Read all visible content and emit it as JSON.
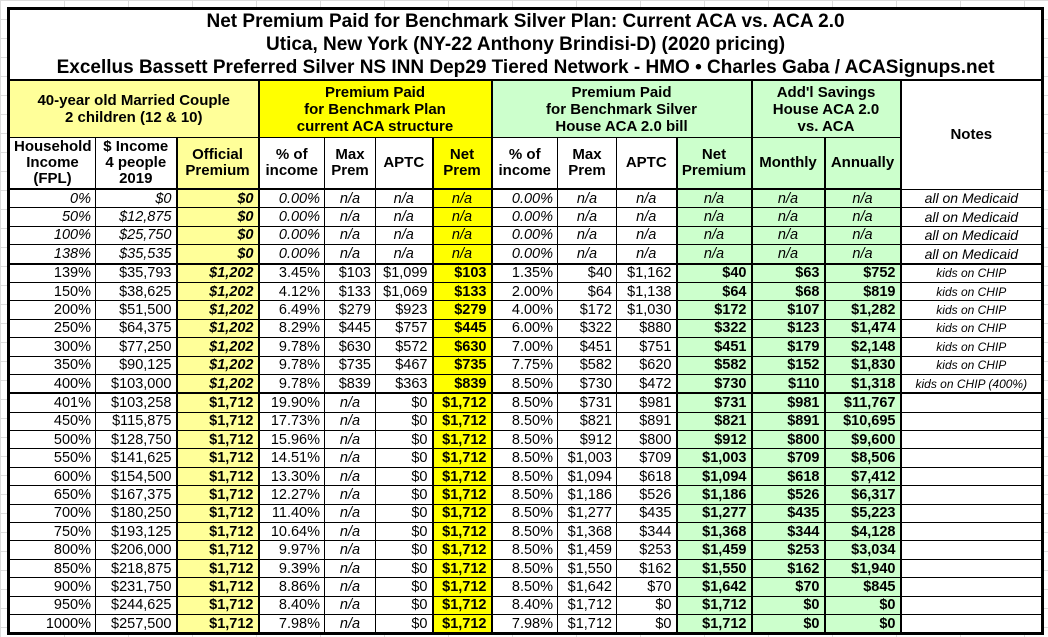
{
  "title": {
    "line1": "Net Premium Paid for Benchmark Silver Plan: Current ACA vs. ACA 2.0",
    "line2": "Utica, New York (NY-22 Anthony Brindisi-D) (2020 pricing)",
    "line3": "Excellus Bassett Preferred Silver NS INN Dep29 Tiered Network - HMO • Charles Gaba / ACASignups.net"
  },
  "group_headers": {
    "household": "40-year old Married Couple\n2 children (12 & 10)",
    "current_aca": "Premium Paid\nfor Benchmark Plan\ncurrent ACA structure",
    "house_aca2": "Premium Paid\nfor Benchmark Silver\nHouse ACA 2.0 bill",
    "savings": "Add'l Savings\nHouse ACA 2.0\nvs. ACA",
    "notes": "Notes"
  },
  "colors": {
    "pale_yellow": "#FFFF99",
    "bright_yellow": "#FFFF00",
    "pale_green": "#CCFFCC",
    "border": "#000000"
  },
  "chart_data": {
    "type": "table",
    "columns": [
      "Household\nIncome\n(FPL)",
      "$ Income\n4 people\n2019",
      "Official\nPremium",
      "% of\nincome",
      "Max\nPrem",
      "APTC",
      "Net\nPrem",
      "% of\nincome",
      "Max\nPrem",
      "APTC",
      "Net\nPremium",
      "Monthly",
      "Annually",
      "Notes"
    ],
    "rows": [
      {
        "style": "medicaid",
        "cells": [
          "0%",
          "$0",
          "$0",
          "0.00%",
          "n/a",
          "n/a",
          "n/a",
          "0.00%",
          "n/a",
          "n/a",
          "n/a",
          "n/a",
          "n/a",
          "all on Medicaid"
        ]
      },
      {
        "style": "medicaid",
        "cells": [
          "50%",
          "$12,875",
          "$0",
          "0.00%",
          "n/a",
          "n/a",
          "n/a",
          "0.00%",
          "n/a",
          "n/a",
          "n/a",
          "n/a",
          "n/a",
          "all on Medicaid"
        ]
      },
      {
        "style": "medicaid",
        "cells": [
          "100%",
          "$25,750",
          "$0",
          "0.00%",
          "n/a",
          "n/a",
          "n/a",
          "0.00%",
          "n/a",
          "n/a",
          "n/a",
          "n/a",
          "n/a",
          "all on Medicaid"
        ]
      },
      {
        "style": "medicaid",
        "cells": [
          "138%",
          "$35,535",
          "$0",
          "0.00%",
          "n/a",
          "n/a",
          "n/a",
          "0.00%",
          "n/a",
          "n/a",
          "n/a",
          "n/a",
          "n/a",
          "all on Medicaid"
        ]
      },
      {
        "style": "chip",
        "cells": [
          "139%",
          "$35,793",
          "$1,202",
          "3.45%",
          "$103",
          "$1,099",
          "$103",
          "1.35%",
          "$40",
          "$1,162",
          "$40",
          "$63",
          "$752",
          "kids on CHIP"
        ]
      },
      {
        "style": "chip",
        "cells": [
          "150%",
          "$38,625",
          "$1,202",
          "4.12%",
          "$133",
          "$1,069",
          "$133",
          "2.00%",
          "$64",
          "$1,138",
          "$64",
          "$68",
          "$819",
          "kids on CHIP"
        ]
      },
      {
        "style": "chip",
        "cells": [
          "200%",
          "$51,500",
          "$1,202",
          "6.49%",
          "$279",
          "$923",
          "$279",
          "4.00%",
          "$172",
          "$1,030",
          "$172",
          "$107",
          "$1,282",
          "kids on CHIP"
        ]
      },
      {
        "style": "chip",
        "cells": [
          "250%",
          "$64,375",
          "$1,202",
          "8.29%",
          "$445",
          "$757",
          "$445",
          "6.00%",
          "$322",
          "$880",
          "$322",
          "$123",
          "$1,474",
          "kids on CHIP"
        ]
      },
      {
        "style": "chip",
        "cells": [
          "300%",
          "$77,250",
          "$1,202",
          "9.78%",
          "$630",
          "$572",
          "$630",
          "7.00%",
          "$451",
          "$751",
          "$451",
          "$179",
          "$2,148",
          "kids on CHIP"
        ]
      },
      {
        "style": "chip",
        "cells": [
          "350%",
          "$90,125",
          "$1,202",
          "9.78%",
          "$735",
          "$467",
          "$735",
          "7.75%",
          "$582",
          "$620",
          "$582",
          "$152",
          "$1,830",
          "kids on CHIP"
        ]
      },
      {
        "style": "chip",
        "cells": [
          "400%",
          "$103,000",
          "$1,202",
          "9.78%",
          "$839",
          "$363",
          "$839",
          "8.50%",
          "$730",
          "$472",
          "$730",
          "$110",
          "$1,318",
          "kids on CHIP (400%)"
        ]
      },
      {
        "style": "plain",
        "cells": [
          "401%",
          "$103,258",
          "$1,712",
          "19.90%",
          "n/a",
          "$0",
          "$1,712",
          "8.50%",
          "$731",
          "$981",
          "$731",
          "$981",
          "$11,767",
          ""
        ]
      },
      {
        "style": "plain",
        "cells": [
          "450%",
          "$115,875",
          "$1,712",
          "17.73%",
          "n/a",
          "$0",
          "$1,712",
          "8.50%",
          "$821",
          "$891",
          "$821",
          "$891",
          "$10,695",
          ""
        ]
      },
      {
        "style": "plain",
        "cells": [
          "500%",
          "$128,750",
          "$1,712",
          "15.96%",
          "n/a",
          "$0",
          "$1,712",
          "8.50%",
          "$912",
          "$800",
          "$912",
          "$800",
          "$9,600",
          ""
        ]
      },
      {
        "style": "plain",
        "cells": [
          "550%",
          "$141,625",
          "$1,712",
          "14.51%",
          "n/a",
          "$0",
          "$1,712",
          "8.50%",
          "$1,003",
          "$709",
          "$1,003",
          "$709",
          "$8,506",
          ""
        ]
      },
      {
        "style": "plain",
        "cells": [
          "600%",
          "$154,500",
          "$1,712",
          "13.30%",
          "n/a",
          "$0",
          "$1,712",
          "8.50%",
          "$1,094",
          "$618",
          "$1,094",
          "$618",
          "$7,412",
          ""
        ]
      },
      {
        "style": "plain",
        "cells": [
          "650%",
          "$167,375",
          "$1,712",
          "12.27%",
          "n/a",
          "$0",
          "$1,712",
          "8.50%",
          "$1,186",
          "$526",
          "$1,186",
          "$526",
          "$6,317",
          ""
        ]
      },
      {
        "style": "plain",
        "cells": [
          "700%",
          "$180,250",
          "$1,712",
          "11.40%",
          "n/a",
          "$0",
          "$1,712",
          "8.50%",
          "$1,277",
          "$435",
          "$1,277",
          "$435",
          "$5,223",
          ""
        ]
      },
      {
        "style": "plain",
        "cells": [
          "750%",
          "$193,125",
          "$1,712",
          "10.64%",
          "n/a",
          "$0",
          "$1,712",
          "8.50%",
          "$1,368",
          "$344",
          "$1,368",
          "$344",
          "$4,128",
          ""
        ]
      },
      {
        "style": "plain",
        "cells": [
          "800%",
          "$206,000",
          "$1,712",
          "9.97%",
          "n/a",
          "$0",
          "$1,712",
          "8.50%",
          "$1,459",
          "$253",
          "$1,459",
          "$253",
          "$3,034",
          ""
        ]
      },
      {
        "style": "plain",
        "cells": [
          "850%",
          "$218,875",
          "$1,712",
          "9.39%",
          "n/a",
          "$0",
          "$1,712",
          "8.50%",
          "$1,550",
          "$162",
          "$1,550",
          "$162",
          "$1,940",
          ""
        ]
      },
      {
        "style": "plain",
        "cells": [
          "900%",
          "$231,750",
          "$1,712",
          "8.86%",
          "n/a",
          "$0",
          "$1,712",
          "8.50%",
          "$1,642",
          "$70",
          "$1,642",
          "$70",
          "$845",
          ""
        ]
      },
      {
        "style": "plain",
        "cells": [
          "950%",
          "$244,625",
          "$1,712",
          "8.40%",
          "n/a",
          "$0",
          "$1,712",
          "8.40%",
          "$1,712",
          "$0",
          "$1,712",
          "$0",
          "$0",
          ""
        ]
      },
      {
        "style": "plain",
        "cells": [
          "1000%",
          "$257,500",
          "$1,712",
          "7.98%",
          "n/a",
          "$0",
          "$1,712",
          "7.98%",
          "$1,712",
          "$0",
          "$1,712",
          "$0",
          "$0",
          ""
        ]
      }
    ]
  }
}
